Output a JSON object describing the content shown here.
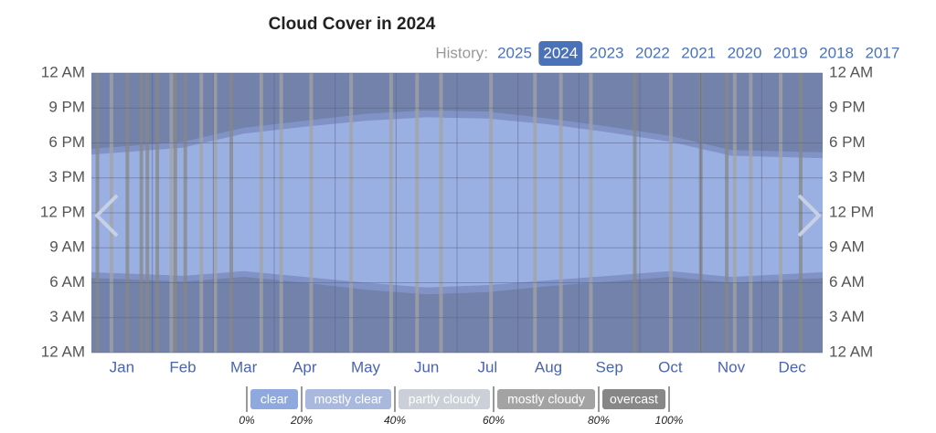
{
  "chart_data": {
    "type": "day-bands",
    "title": "Cloud Cover in 2024",
    "history": {
      "label": "History:",
      "years": [
        2025,
        2024,
        2023,
        2022,
        2021,
        2020,
        2019,
        2018,
        2017
      ],
      "selected": 2024
    },
    "categories": [
      "Jan",
      "Feb",
      "Mar",
      "Apr",
      "May",
      "Jun",
      "Jul",
      "Aug",
      "Sep",
      "Oct",
      "Nov",
      "Dec"
    ],
    "xlim": [
      0,
      366
    ],
    "ylim": [
      0,
      24
    ],
    "yticks": [
      {
        "value": 0,
        "label": "12 AM"
      },
      {
        "value": 3,
        "label": "3 AM"
      },
      {
        "value": 6,
        "label": "6 AM"
      },
      {
        "value": 9,
        "label": "9 AM"
      },
      {
        "value": 12,
        "label": "12 PM"
      },
      {
        "value": 15,
        "label": "3 PM"
      },
      {
        "value": 18,
        "label": "6 PM"
      },
      {
        "value": 21,
        "label": "9 PM"
      },
      {
        "value": 24,
        "label": "12 AM"
      }
    ],
    "background": "#7282aa",
    "bands": [
      {
        "color": "#8193c6",
        "low": [
          6.4,
          6.1,
          6.5,
          6.0,
          5.4,
          5.0,
          5.2,
          5.7,
          6.1,
          6.5,
          6.0,
          6.4
        ],
        "high": [
          17.5,
          18.1,
          19.3,
          19.9,
          20.5,
          20.8,
          20.7,
          20.1,
          19.4,
          18.6,
          17.4,
          17.2
        ]
      },
      {
        "color": "#9bb0e2",
        "low": [
          6.9,
          6.6,
          7.0,
          6.5,
          6.0,
          5.6,
          5.8,
          6.2,
          6.6,
          7.0,
          6.5,
          6.9
        ],
        "high": [
          17.0,
          17.6,
          18.8,
          19.4,
          19.9,
          20.2,
          20.1,
          19.6,
          18.9,
          18.1,
          16.9,
          16.7
        ]
      }
    ],
    "cloudy_days": {
      "x": [
        3,
        10,
        18,
        25,
        28,
        33,
        40,
        42,
        47,
        55,
        62,
        70,
        85,
        95,
        110,
        130,
        150,
        163,
        175,
        200,
        222,
        235,
        250,
        272,
        290,
        305,
        318,
        322,
        330,
        345,
        355
      ],
      "values": [
        85,
        70,
        90,
        95,
        88,
        92,
        75,
        90,
        85,
        65,
        70,
        80,
        62,
        70,
        66,
        64,
        72,
        68,
        62,
        70,
        66,
        75,
        62,
        80,
        70,
        85,
        90,
        62,
        78,
        70,
        88
      ]
    },
    "legend": {
      "labels": [
        "clear",
        "mostly clear",
        "partly cloudy",
        "mostly cloudy",
        "overcast"
      ],
      "colors": [
        "#8fa9de",
        "#a9b9dd",
        "#cbcfd8",
        "#a3a3a3",
        "#878787"
      ],
      "ticks": [
        {
          "value": 0,
          "label": "0%"
        },
        {
          "value": 20,
          "label": "20%"
        },
        {
          "value": 40,
          "label": "40%"
        },
        {
          "value": 60,
          "label": "60%"
        },
        {
          "value": 80,
          "label": "80%"
        },
        {
          "value": 100,
          "label": "100%"
        }
      ]
    }
  }
}
